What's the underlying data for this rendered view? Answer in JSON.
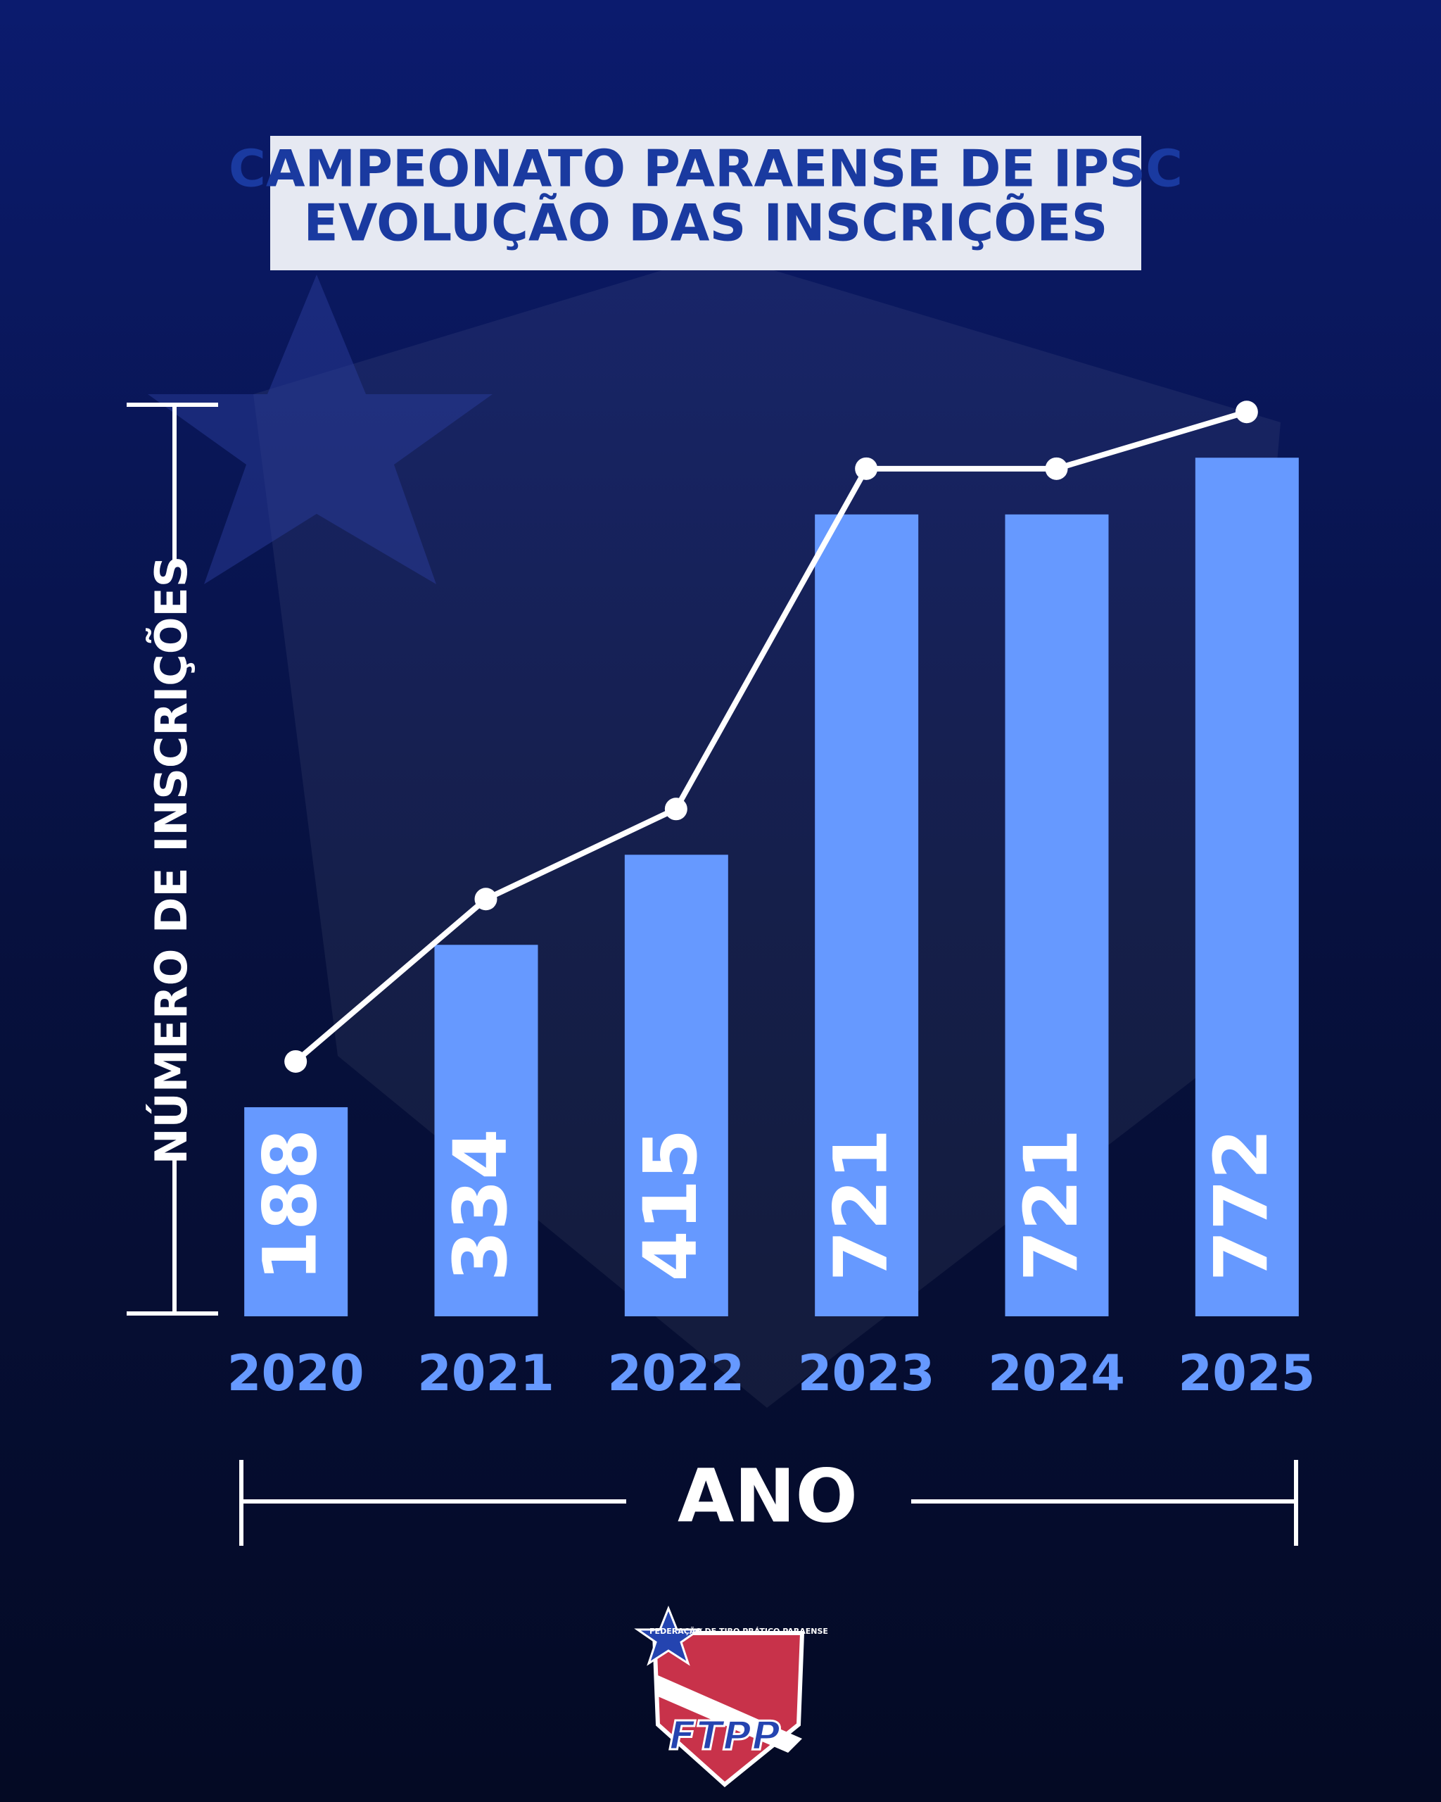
{
  "chart_data": {
    "type": "bar",
    "title": "CAMPEONATO PARAENSE DE IPSC",
    "subtitle": "EVOLUÇÃO DAS INSCRIÇÕES",
    "x_label": "ANO",
    "y_label": "NÚMERO DE INSCRIÇÕES",
    "categories": [
      "2020",
      "2021",
      "2022",
      "2023",
      "2024",
      "2025"
    ],
    "values": [
      188,
      334,
      415,
      721,
      721,
      772
    ],
    "color": "#6699ff",
    "line_color": "#ffffff",
    "ylim": [
      0,
      800
    ]
  },
  "logo": {
    "caption": "FEDERAÇÃO DE TIRO PRÁTICO PARAENSE",
    "text": "FTPP"
  }
}
